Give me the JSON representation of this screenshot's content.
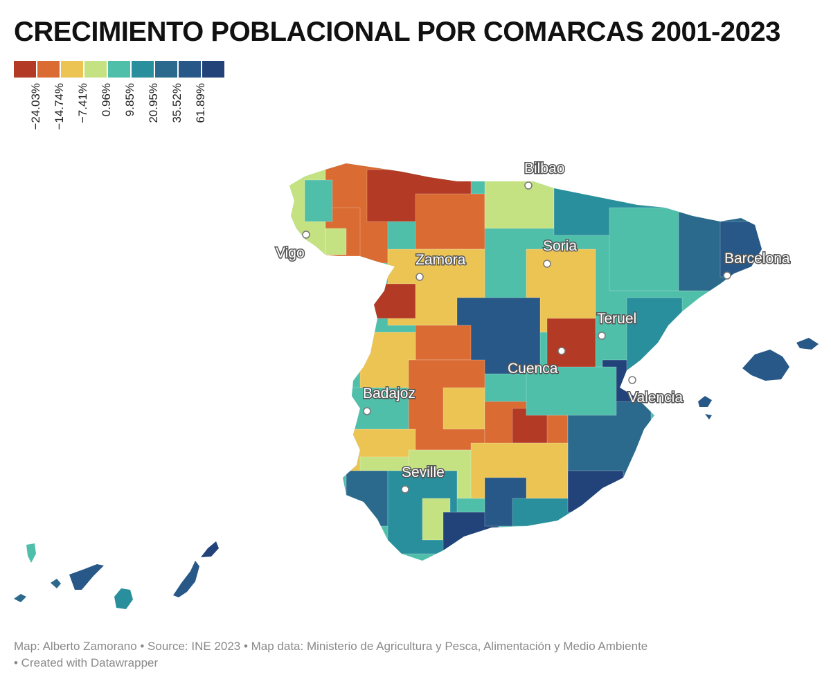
{
  "title": "CRECIMIENTO POBLACIONAL POR COMARCAS 2001-2023",
  "legend": {
    "colors": [
      "#b33a25",
      "#d96b33",
      "#ebc454",
      "#c5e282",
      "#4fbfaa",
      "#2a8f9c",
      "#2c6a8d",
      "#275887",
      "#21437a"
    ],
    "labels": [
      "−24.03%",
      "−14.74%",
      "−7.41%",
      "0.96%",
      "9.85%",
      "20.95%",
      "35.52%",
      "61.89%"
    ]
  },
  "cities": [
    {
      "name": "Bilbao",
      "id": "bilbao"
    },
    {
      "name": "Vigo",
      "id": "vigo"
    },
    {
      "name": "Soria",
      "id": "soria"
    },
    {
      "name": "Zamora",
      "id": "zamora"
    },
    {
      "name": "Barcelona",
      "id": "barcelona"
    },
    {
      "name": "Teruel",
      "id": "teruel"
    },
    {
      "name": "Cuenca",
      "id": "cuenca"
    },
    {
      "name": "Valencia",
      "id": "valencia"
    },
    {
      "name": "Badajoz",
      "id": "badajoz"
    },
    {
      "name": "Seville",
      "id": "seville"
    }
  ],
  "footer": {
    "line1": "Map: Alberto Zamorano • Source: INE 2023 • Map data: Ministerio de Agricultura y Pesca, Alimentación y Medio Ambiente",
    "line2": "• Created with Datawrapper"
  }
}
